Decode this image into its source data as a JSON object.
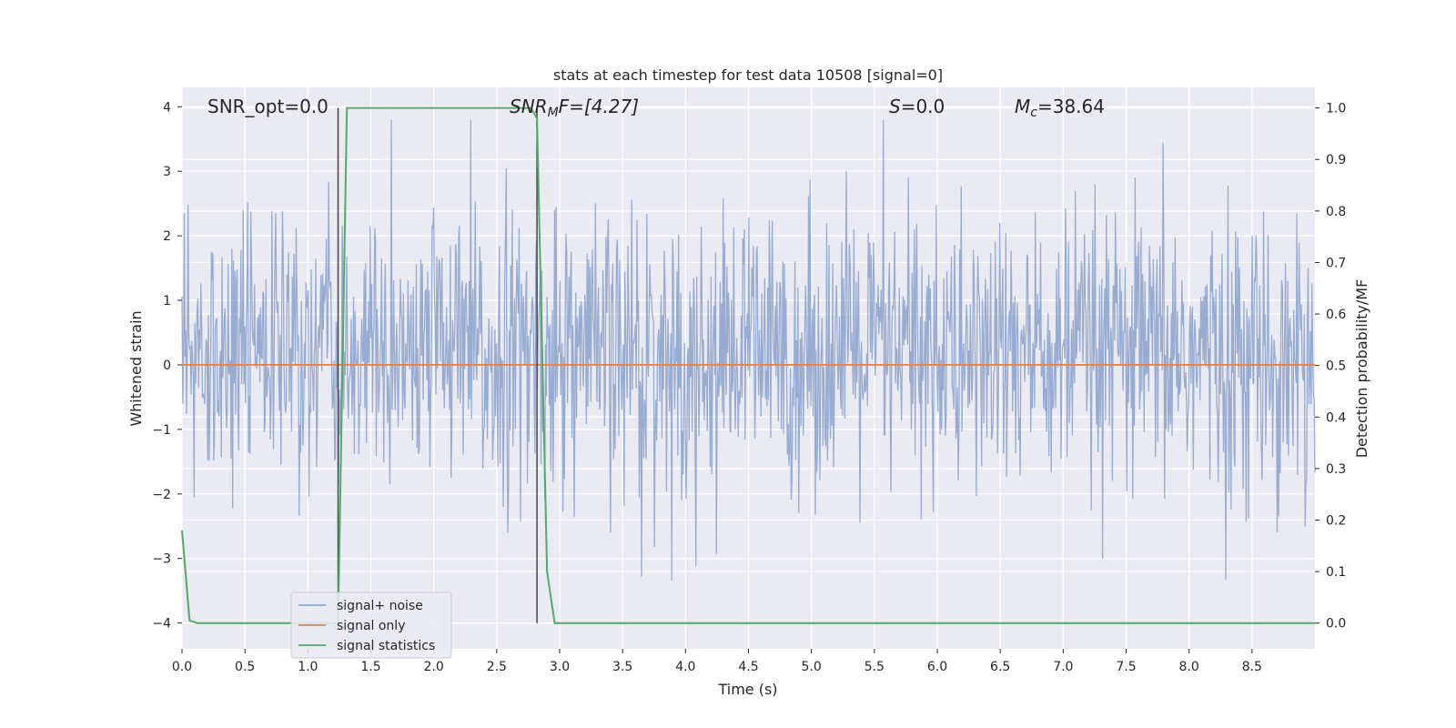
{
  "chart_data": {
    "type": "line",
    "title": "stats at each timestep for test data 10508 [signal=0]",
    "xlabel": "Time (s)",
    "ylabel_left": "Whitened strain",
    "ylabel_right": "Detection probability/MF",
    "xlim": [
      0.0,
      9.0
    ],
    "ylim_left": [
      -4.4,
      4.3
    ],
    "ylim_right": [
      -0.05,
      1.04
    ],
    "x_ticks": [
      "0.0",
      "0.5",
      "1.0",
      "1.5",
      "2.0",
      "2.5",
      "3.0",
      "3.5",
      "4.0",
      "4.5",
      "5.0",
      "5.5",
      "6.0",
      "6.5",
      "7.0",
      "7.5",
      "8.0",
      "8.5"
    ],
    "y_ticks_left": [
      "4",
      "3",
      "2",
      "1",
      "0",
      "−1",
      "−2",
      "−3",
      "−4"
    ],
    "y_ticks_right": [
      "1.0",
      "0.9",
      "0.8",
      "0.7",
      "0.6",
      "0.5",
      "0.4",
      "0.3",
      "0.2",
      "0.1",
      "0.0"
    ],
    "grid": true,
    "legend_position": "lower-left",
    "annotations": {
      "snr_opt": "SNR_opt=0.0",
      "snr_mf_base": "SNR",
      "snr_mf_sub": "M",
      "snr_mf_rest": "F=[4.27]",
      "s_base": "S",
      "s_rest": "=0.0",
      "mc_base": "M",
      "mc_sub": "c",
      "mc_rest": "=38.64"
    },
    "vertical_markers": [
      1.24,
      2.82
    ],
    "series": [
      {
        "name": "signal+ noise",
        "axis": "left",
        "color": "#8fa5cd",
        "description_range": [
          -4.0,
          3.8
        ],
        "typical_envelope": [
          -2.0,
          2.5
        ]
      },
      {
        "name": "signal only",
        "axis": "left",
        "color": "#dd8452",
        "x": [
          0.0,
          9.0
        ],
        "y": [
          0.0,
          0.0
        ]
      },
      {
        "name": "signal statistics",
        "axis": "right",
        "color": "#55a868",
        "x": [
          0.0,
          0.06,
          0.12,
          1.24,
          1.31,
          2.77,
          2.82,
          2.9,
          2.96,
          9.0
        ],
        "y": [
          0.18,
          0.005,
          0.0,
          0.0,
          1.0,
          1.0,
          0.98,
          0.1,
          0.0,
          0.0
        ]
      }
    ]
  }
}
